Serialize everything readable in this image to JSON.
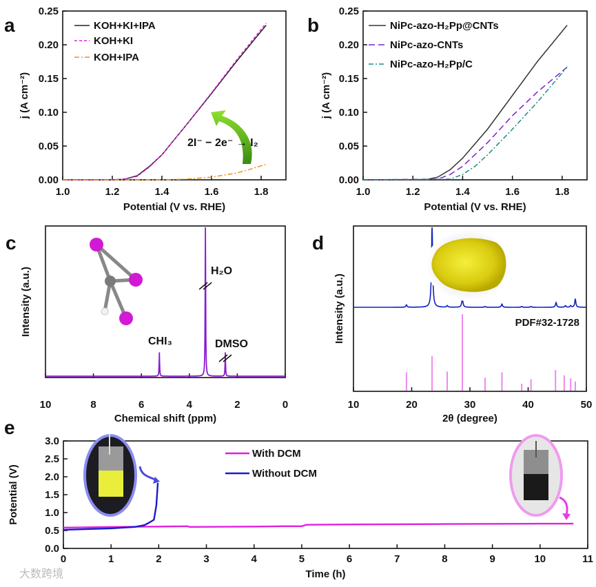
{
  "watermark": "大数跨境",
  "chart_data": [
    {
      "panel": "a",
      "type": "line",
      "xlabel": "Potential (V vs. RHE)",
      "ylabel": "j (A cm⁻²)",
      "xlim": [
        1.0,
        1.9
      ],
      "ylim": [
        0,
        0.25
      ],
      "xticks": [
        1.0,
        1.2,
        1.4,
        1.6,
        1.8
      ],
      "xtick_labels": [
        "1.0",
        "1.2",
        "1.4",
        "1.6",
        "1.8"
      ],
      "yticks": [
        0,
        0.05,
        0.1,
        0.15,
        0.2,
        0.25
      ],
      "ytick_labels": [
        "0.00",
        "0.05",
        "0.10",
        "0.15",
        "0.20",
        "0.25"
      ],
      "legend_position": "top-left",
      "annotation": "2I⁻ − 2e⁻ → I₂",
      "series": [
        {
          "name": "KOH+KI+IPA",
          "color": "#222222",
          "x": [
            1.0,
            1.2,
            1.25,
            1.3,
            1.35,
            1.4,
            1.5,
            1.6,
            1.7,
            1.82
          ],
          "y": [
            0,
            0,
            0.001,
            0.006,
            0.02,
            0.037,
            0.082,
            0.128,
            0.175,
            0.229
          ]
        },
        {
          "name": "KOH+KI",
          "color": "#e020e0",
          "x": [
            1.0,
            1.2,
            1.25,
            1.3,
            1.35,
            1.4,
            1.5,
            1.6,
            1.7,
            1.82
          ],
          "y": [
            0,
            0,
            0.001,
            0.005,
            0.019,
            0.037,
            0.082,
            0.129,
            0.177,
            0.232
          ]
        },
        {
          "name": "KOH+IPA",
          "color": "#f0901a",
          "x": [
            1.0,
            1.4,
            1.5,
            1.6,
            1.7,
            1.75,
            1.82
          ],
          "y": [
            0,
            0,
            0.001,
            0.004,
            0.01,
            0.015,
            0.023
          ]
        }
      ]
    },
    {
      "panel": "b",
      "type": "line",
      "xlabel": "Potential (V vs. RHE)",
      "ylabel": "j (A cm⁻²)",
      "xlim": [
        1.0,
        1.9
      ],
      "ylim": [
        0,
        0.25
      ],
      "xticks": [
        1.0,
        1.2,
        1.4,
        1.6,
        1.8
      ],
      "xtick_labels": [
        "1.0",
        "1.2",
        "1.4",
        "1.6",
        "1.8"
      ],
      "yticks": [
        0,
        0.05,
        0.1,
        0.15,
        0.2,
        0.25
      ],
      "ytick_labels": [
        "0.00",
        "0.05",
        "0.10",
        "0.15",
        "0.20",
        "0.25"
      ],
      "legend_position": "top-left",
      "series": [
        {
          "name": "NiPc-azo-H₂Pp@CNTs",
          "color": "#333333",
          "x": [
            1.0,
            1.25,
            1.3,
            1.35,
            1.4,
            1.5,
            1.6,
            1.7,
            1.82
          ],
          "y": [
            0,
            0,
            0.004,
            0.015,
            0.032,
            0.075,
            0.125,
            0.175,
            0.229
          ]
        },
        {
          "name": "NiPc-azo-CNTs",
          "color": "#7b1fd0",
          "x": [
            1.0,
            1.3,
            1.35,
            1.4,
            1.5,
            1.6,
            1.7,
            1.82
          ],
          "y": [
            0,
            0.001,
            0.008,
            0.02,
            0.055,
            0.095,
            0.13,
            0.167
          ]
        },
        {
          "name": "NiPc-azo-H₂Pp/C",
          "color": "#1a8a8a",
          "x": [
            1.0,
            1.35,
            1.4,
            1.45,
            1.5,
            1.6,
            1.7,
            1.82
          ],
          "y": [
            0,
            0.001,
            0.008,
            0.02,
            0.037,
            0.075,
            0.115,
            0.167
          ]
        }
      ]
    },
    {
      "panel": "c",
      "type": "line",
      "xlabel": "Chemical shift (ppm)",
      "ylabel": "Intensity (a.u.)",
      "xlim": [
        10,
        0
      ],
      "xticks": [
        10,
        8,
        6,
        4,
        2,
        0
      ],
      "xtick_labels": [
        "10",
        "8",
        "6",
        "4",
        "2",
        "0"
      ],
      "color": "#8a1ad0",
      "peaks": [
        {
          "label": "CHI₃",
          "x": 5.25,
          "intensity": 0.16
        },
        {
          "label": "H₂O",
          "x": 3.33,
          "intensity": 1.0,
          "axis_break": true
        },
        {
          "label": "DMSO",
          "x": 2.5,
          "intensity": 0.16,
          "axis_break": true
        }
      ]
    },
    {
      "panel": "d",
      "type": "line",
      "xlabel": "2θ (degree)",
      "ylabel": "Intensity (a.u.)",
      "xlim": [
        10,
        50
      ],
      "xticks": [
        10,
        20,
        30,
        40,
        50
      ],
      "xtick_labels": [
        "10",
        "20",
        "30",
        "40",
        "50"
      ],
      "measured": {
        "color": "#1020c0",
        "peaks_x": [
          19.1,
          23.5,
          26.1,
          28.7,
          32.6,
          35.5,
          38.9,
          40.5,
          44.8,
          46.4,
          47.3,
          48.1
        ],
        "intensity": [
          0.03,
          1.0,
          0.02,
          0.12,
          0.01,
          0.04,
          0.01,
          0.01,
          0.06,
          0.02,
          0.02,
          0.1
        ]
      },
      "reference": {
        "name": "PDF#32-1728",
        "color": "#ee88ee",
        "x": [
          19.1,
          23.5,
          26.1,
          28.7,
          32.6,
          35.5,
          38.9,
          40.5,
          44.7,
          46.2,
          47.3,
          48.1
        ],
        "intensity": [
          0.24,
          0.45,
          0.25,
          1.0,
          0.17,
          0.24,
          0.09,
          0.15,
          0.27,
          0.2,
          0.16,
          0.12
        ]
      }
    },
    {
      "panel": "e",
      "type": "line",
      "xlabel": "Time (h)",
      "ylabel": "Potential (V)",
      "xlim": [
        0,
        11
      ],
      "ylim": [
        0,
        3.0
      ],
      "xticks": [
        0,
        1,
        2,
        3,
        4,
        5,
        6,
        7,
        8,
        9,
        10,
        11
      ],
      "xtick_labels": [
        "0",
        "1",
        "2",
        "3",
        "4",
        "5",
        "6",
        "7",
        "8",
        "9",
        "10",
        "11"
      ],
      "yticks": [
        0,
        0.5,
        1.0,
        1.5,
        2.0,
        2.5,
        3.0
      ],
      "ytick_labels": [
        "0.0",
        "0.5",
        "1.0",
        "1.5",
        "2.0",
        "2.5",
        "3.0"
      ],
      "legend_position": "top-center",
      "series": [
        {
          "name": "With DCM",
          "color": "#e020e0",
          "x": [
            0,
            1,
            2,
            2.6,
            2.65,
            4,
            4.6,
            5,
            5.1,
            6,
            8,
            10,
            10.7
          ],
          "y": [
            0.58,
            0.6,
            0.61,
            0.62,
            0.6,
            0.61,
            0.62,
            0.62,
            0.66,
            0.67,
            0.68,
            0.69,
            0.69
          ]
        },
        {
          "name": "Without DCM",
          "color": "#1a1acc",
          "x": [
            0,
            0.5,
            1,
            1.5,
            1.7,
            1.8,
            1.9,
            1.95,
            1.97,
            1.98
          ],
          "y": [
            0.52,
            0.54,
            0.56,
            0.6,
            0.65,
            0.72,
            0.8,
            1.2,
            1.6,
            1.83
          ]
        }
      ]
    }
  ]
}
